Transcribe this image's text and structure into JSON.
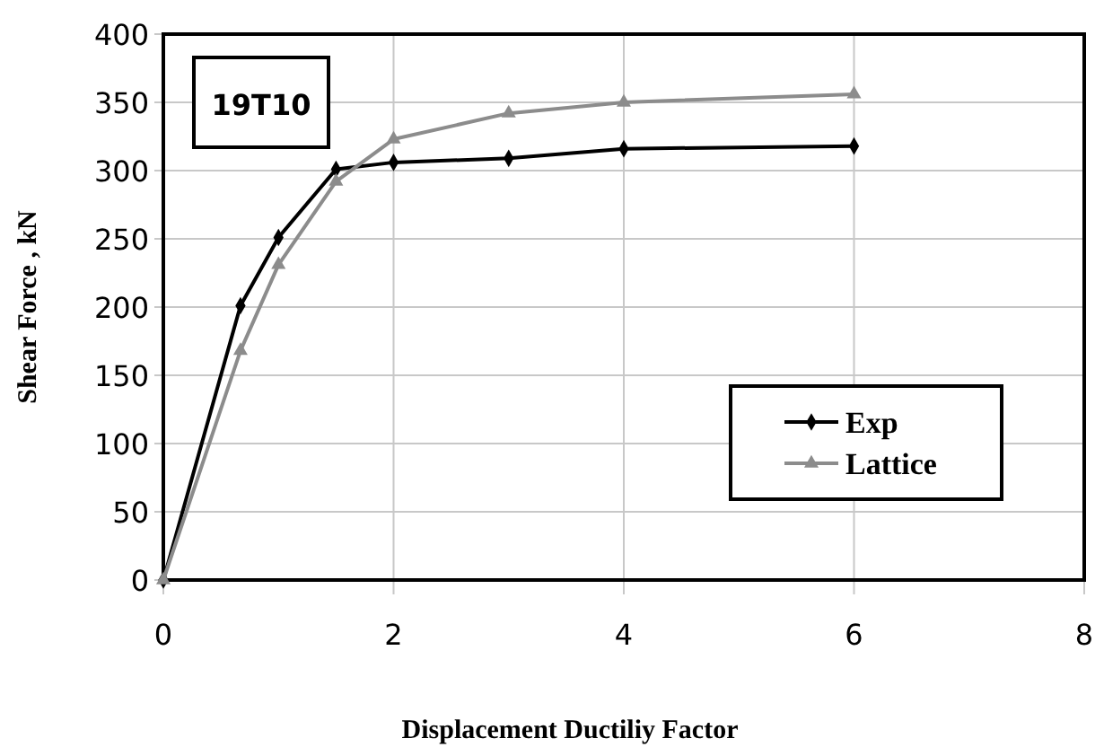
{
  "chart_data": {
    "type": "line",
    "xlabel": "Displacement Ductiliy Factor",
    "ylabel": "Shear  Force , kN",
    "annotations": [
      "19T10"
    ],
    "xlim": [
      0,
      8
    ],
    "xticks": [
      0,
      2,
      4,
      6,
      8
    ],
    "ylim": [
      0,
      400
    ],
    "yticks": [
      0,
      50,
      100,
      150,
      200,
      250,
      300,
      350,
      400
    ],
    "grid": true,
    "legend": "bottom right",
    "series": [
      {
        "name": "Exp",
        "color": "#000000",
        "marker": "diamond",
        "x": [
          0,
          0.67,
          1,
          1.5,
          2,
          3,
          4,
          6
        ],
        "values": [
          0,
          201,
          251,
          301,
          306,
          309,
          316,
          318
        ]
      },
      {
        "name": "Lattice",
        "color": "#8c8c8c",
        "marker": "triangle",
        "x": [
          0,
          0.67,
          1,
          1.5,
          2,
          3,
          4,
          6
        ],
        "values": [
          0,
          168,
          231,
          292,
          323,
          342,
          350,
          356
        ]
      }
    ]
  }
}
